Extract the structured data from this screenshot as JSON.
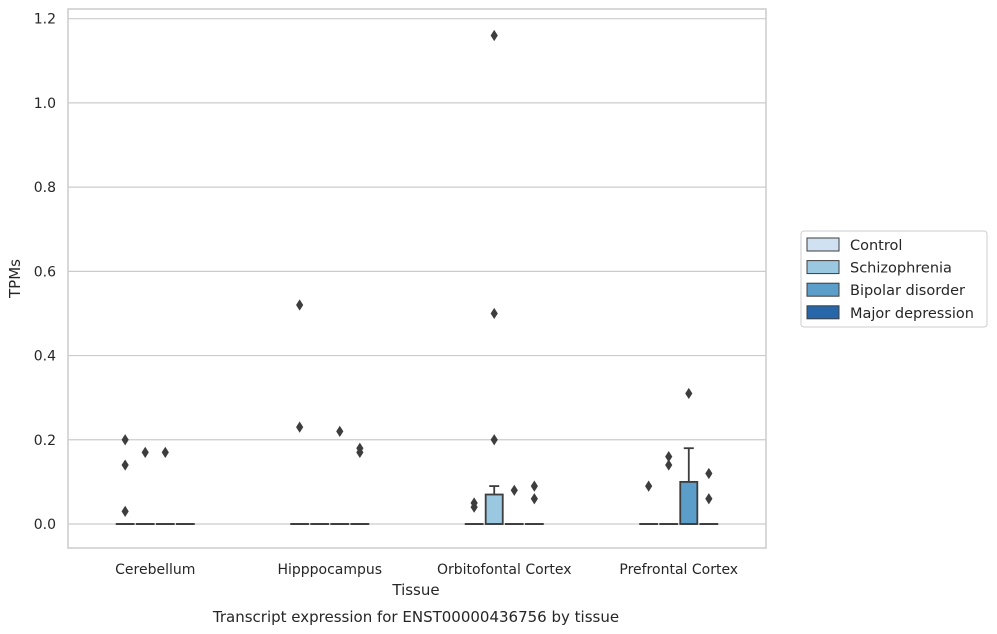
{
  "chart_data": {
    "type": "box",
    "caption": "Transcript expression for ENST00000436756 by tissue",
    "xlabel": "Tissue",
    "ylabel": "TPMs",
    "ylim": [
      -0.057,
      1.223
    ],
    "yticks": [
      0.0,
      0.2,
      0.4,
      0.6,
      0.8,
      1.0,
      1.2
    ],
    "ytick_labels": [
      "0.0",
      "0.2",
      "0.4",
      "0.6",
      "0.8",
      "1.0",
      "1.2"
    ],
    "grid": "horizontal",
    "legend_position": "right",
    "categories": [
      "Cerebellum",
      "Hipppocampus",
      "Orbitofontal Cortex",
      "Prefrontal Cortex"
    ],
    "series": [
      {
        "name": "Control",
        "color": "#d0e1f2",
        "boxes": [
          {
            "q1": 0,
            "median": 0,
            "q3": 0,
            "whisker_low": 0,
            "whisker_high": 0,
            "outliers": [
              0.2,
              0.14,
              0.03
            ]
          },
          {
            "q1": 0,
            "median": 0,
            "q3": 0,
            "whisker_low": 0,
            "whisker_high": 0,
            "outliers": [
              0.52,
              0.23
            ]
          },
          {
            "q1": 0,
            "median": 0,
            "q3": 0,
            "whisker_low": 0,
            "whisker_high": 0,
            "outliers": [
              0.05,
              0.04
            ]
          },
          {
            "q1": 0,
            "median": 0,
            "q3": 0,
            "whisker_low": 0,
            "whisker_high": 0,
            "outliers": [
              0.09
            ]
          }
        ]
      },
      {
        "name": "Schizophrenia",
        "color": "#9ac8e0",
        "boxes": [
          {
            "q1": 0,
            "median": 0,
            "q3": 0,
            "whisker_low": 0,
            "whisker_high": 0,
            "outliers": [
              0.17
            ]
          },
          {
            "q1": 0,
            "median": 0,
            "q3": 0,
            "whisker_low": 0,
            "whisker_high": 0,
            "outliers": []
          },
          {
            "q1": 0,
            "median": 0,
            "q3": 0.07,
            "whisker_low": 0,
            "whisker_high": 0.09,
            "outliers": [
              1.16,
              0.5,
              0.2
            ]
          },
          {
            "q1": 0,
            "median": 0,
            "q3": 0,
            "whisker_low": 0,
            "whisker_high": 0,
            "outliers": [
              0.16,
              0.14
            ]
          }
        ]
      },
      {
        "name": "Bipolar disorder",
        "color": "#5a9ec9",
        "boxes": [
          {
            "q1": 0,
            "median": 0,
            "q3": 0,
            "whisker_low": 0,
            "whisker_high": 0,
            "outliers": [
              0.17
            ]
          },
          {
            "q1": 0,
            "median": 0,
            "q3": 0,
            "whisker_low": 0,
            "whisker_high": 0,
            "outliers": [
              0.22
            ]
          },
          {
            "q1": 0,
            "median": 0,
            "q3": 0,
            "whisker_low": 0,
            "whisker_high": 0,
            "outliers": [
              0.08
            ]
          },
          {
            "q1": 0,
            "median": 0,
            "q3": 0.1,
            "whisker_low": 0,
            "whisker_high": 0.18,
            "outliers": [
              0.31
            ]
          }
        ]
      },
      {
        "name": "Major depression",
        "color": "#2666a9",
        "boxes": [
          {
            "q1": 0,
            "median": 0,
            "q3": 0,
            "whisker_low": 0,
            "whisker_high": 0,
            "outliers": []
          },
          {
            "q1": 0,
            "median": 0,
            "q3": 0,
            "whisker_low": 0,
            "whisker_high": 0,
            "outliers": [
              0.18,
              0.17
            ]
          },
          {
            "q1": 0,
            "median": 0,
            "q3": 0,
            "whisker_low": 0,
            "whisker_high": 0,
            "outliers": [
              0.09,
              0.06
            ]
          },
          {
            "q1": 0,
            "median": 0,
            "q3": 0,
            "whisker_low": 0,
            "whisker_high": 0,
            "outliers": [
              0.12,
              0.06
            ]
          }
        ]
      }
    ]
  }
}
